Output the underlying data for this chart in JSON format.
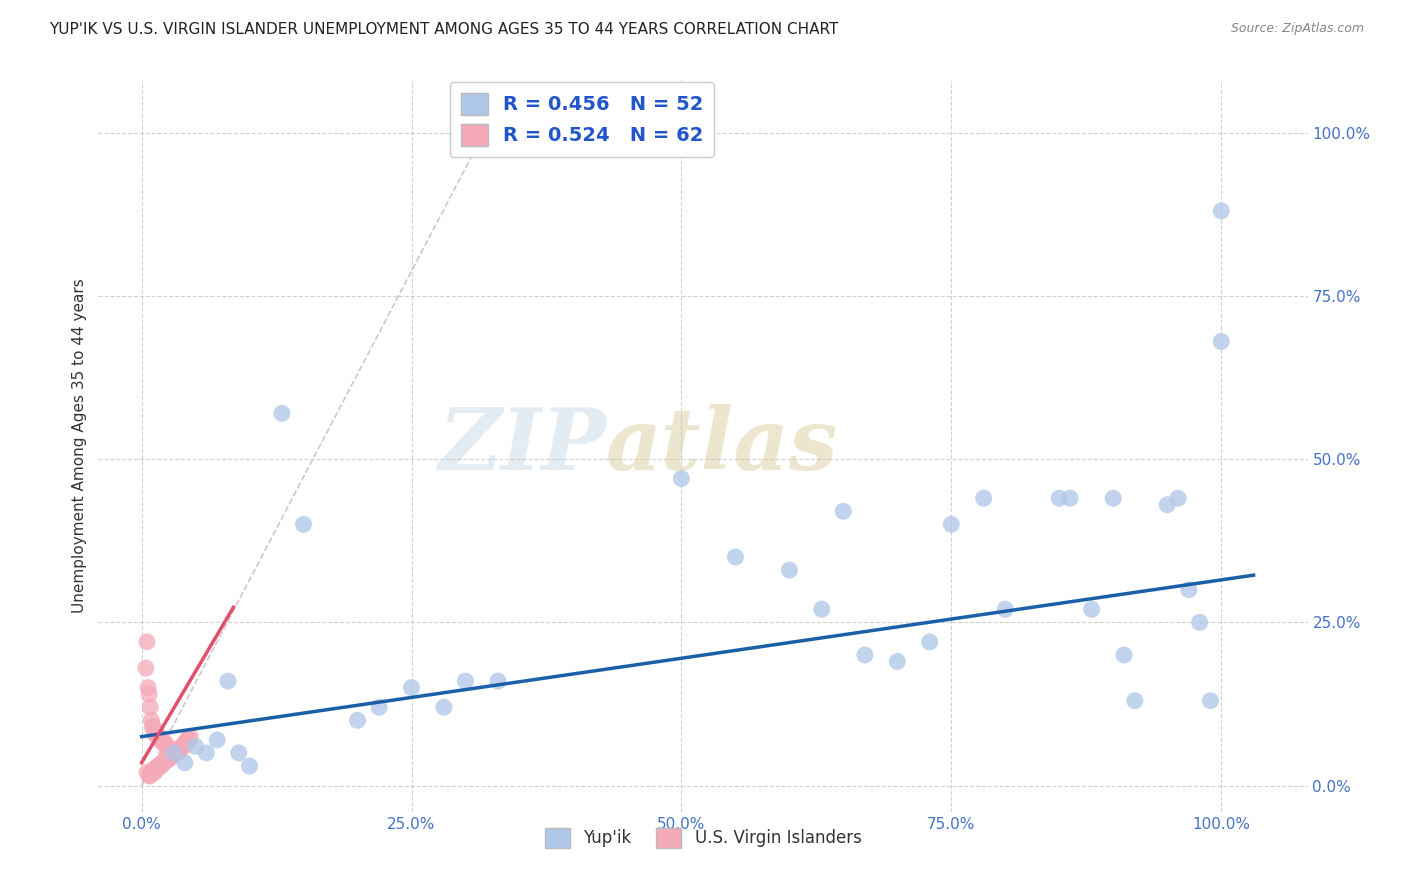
{
  "title": "YUP'IK VS U.S. VIRGIN ISLANDER UNEMPLOYMENT AMONG AGES 35 TO 44 YEARS CORRELATION CHART",
  "source": "Source: ZipAtlas.com",
  "ylabel": "Unemployment Among Ages 35 to 44 years",
  "x_tick_positions": [
    0,
    25,
    50,
    75,
    100
  ],
  "y_tick_positions": [
    0,
    25,
    50,
    75,
    100
  ],
  "ylim": [
    -4,
    108
  ],
  "xlim": [
    -4,
    108
  ],
  "yupik_scatter_color": "#aec6e8",
  "virgin_scatter_color": "#f4aab8",
  "trend_blue_color": "#1a5fa8",
  "trend_red_color": "#e0506a",
  "trend_red_dashed_color": "#d4a0a8",
  "background_color": "#ffffff",
  "grid_color": "#cccccc",
  "watermark_zip": "ZIP",
  "watermark_atlas": "atlas",
  "title_fontsize": 11,
  "axis_label_fontsize": 11,
  "tick_fontsize": 11,
  "tick_color": "#4472c4",
  "legend_text_color": "#2255cc",
  "yupik_x": [
    3.0,
    4.0,
    5.0,
    6.0,
    7.0,
    8.0,
    9.0,
    10.0,
    13.0,
    15.0,
    20.0,
    22.0,
    25.0,
    28.0,
    30.0,
    33.0,
    50.0,
    55.0,
    60.0,
    63.0,
    65.0,
    67.0,
    70.0,
    73.0,
    75.0,
    78.0,
    80.0,
    85.0,
    86.0,
    88.0,
    90.0,
    91.0,
    92.0,
    95.0,
    96.0,
    97.0,
    98.0,
    99.0,
    100.0,
    100.0
  ],
  "yupik_y": [
    5.0,
    3.5,
    6.0,
    5.0,
    7.0,
    16.0,
    5.0,
    3.0,
    57.0,
    40.0,
    10.0,
    12.0,
    15.0,
    12.0,
    16.0,
    16.0,
    47.0,
    35.0,
    33.0,
    27.0,
    42.0,
    20.0,
    19.0,
    22.0,
    40.0,
    44.0,
    27.0,
    44.0,
    44.0,
    27.0,
    44.0,
    20.0,
    13.0,
    43.0,
    44.0,
    30.0,
    25.0,
    13.0,
    88.0,
    68.0
  ],
  "virgin_x": [
    0.5,
    0.7,
    0.8,
    0.9,
    1.0,
    1.1,
    1.2,
    1.3,
    1.4,
    1.5,
    1.6,
    1.7,
    1.8,
    1.9,
    2.0,
    2.1,
    2.2,
    2.3,
    2.4,
    2.5,
    2.6,
    2.7,
    2.8,
    2.9,
    3.0,
    3.1,
    3.2,
    3.3,
    3.4,
    3.5,
    3.6,
    3.7,
    3.8,
    3.9,
    4.0,
    4.1,
    4.2,
    4.3,
    4.4,
    4.5,
    0.4,
    0.5,
    0.6,
    0.7,
    0.8,
    0.9,
    1.0,
    1.1,
    1.2,
    1.3,
    1.4,
    1.5,
    1.6,
    1.7,
    1.8,
    1.9,
    2.0,
    2.1,
    2.2,
    2.3,
    2.4,
    2.5
  ],
  "virgin_y": [
    2.0,
    1.5,
    1.5,
    2.0,
    2.0,
    2.5,
    2.0,
    2.5,
    2.5,
    3.0,
    3.0,
    3.0,
    3.0,
    3.5,
    3.5,
    3.5,
    4.0,
    4.0,
    4.0,
    4.0,
    4.5,
    4.5,
    4.5,
    5.0,
    5.0,
    5.0,
    5.0,
    5.0,
    5.5,
    5.5,
    5.5,
    6.0,
    6.0,
    6.0,
    6.5,
    6.5,
    7.0,
    7.0,
    7.0,
    7.5,
    18.0,
    22.0,
    15.0,
    14.0,
    12.0,
    10.0,
    9.0,
    9.0,
    8.0,
    8.0,
    8.0,
    7.5,
    7.5,
    7.0,
    7.0,
    7.0,
    6.5,
    6.5,
    6.5,
    6.0,
    6.0,
    5.5
  ]
}
